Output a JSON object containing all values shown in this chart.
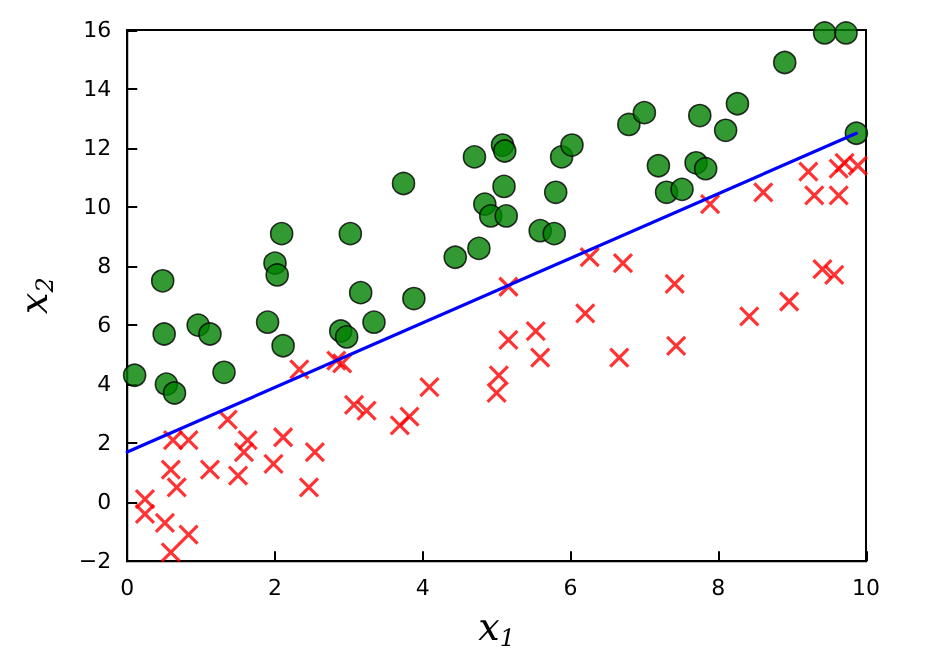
{
  "chart_data": {
    "type": "scatter",
    "xlabel": "x$_{1}$",
    "ylabel": "x$_{2}$",
    "xlim": [
      0,
      10
    ],
    "xticks": [
      0,
      2,
      4,
      6,
      8,
      10
    ],
    "ylim": [
      -2,
      16
    ],
    "yticks": [
      -2,
      0,
      2,
      4,
      6,
      8,
      10,
      12,
      14,
      16
    ],
    "grid": false,
    "series": [
      {
        "marker": "circle",
        "color": "#007f00",
        "x": [
          0.1,
          0.5,
          0.53,
          0.64,
          0.48,
          0.96,
          1.12,
          1.31,
          1.9,
          2.11,
          2.0,
          2.03,
          2.09,
          2.89,
          2.97,
          3.02,
          3.16,
          3.34,
          3.74,
          3.88,
          4.44,
          4.7,
          4.76,
          4.84,
          4.92,
          5.08,
          5.11,
          5.1,
          5.13,
          5.59,
          5.78,
          5.8,
          5.88,
          6.02,
          6.79,
          7.0,
          7.19,
          7.3,
          7.51,
          7.7,
          7.83,
          7.75,
          8.1,
          8.26,
          8.9,
          9.44,
          9.73,
          9.87
        ],
        "values": [
          4.3,
          5.7,
          4.0,
          3.7,
          7.5,
          6.0,
          5.7,
          4.4,
          6.1,
          5.3,
          8.1,
          7.7,
          9.1,
          5.8,
          5.6,
          9.1,
          7.1,
          6.1,
          10.8,
          6.9,
          8.3,
          11.7,
          8.6,
          10.1,
          9.7,
          12.1,
          11.9,
          10.7,
          9.7,
          9.2,
          9.1,
          10.5,
          11.7,
          12.1,
          12.8,
          13.2,
          11.4,
          10.5,
          10.6,
          11.5,
          11.3,
          13.1,
          12.6,
          13.5,
          14.9,
          15.9,
          15.9,
          12.5
        ]
      },
      {
        "marker": "cross",
        "color": "#ff0000",
        "x": [
          0.24,
          0.24,
          0.51,
          0.59,
          0.83,
          0.59,
          0.67,
          0.62,
          0.83,
          1.12,
          1.36,
          1.5,
          1.58,
          1.63,
          1.98,
          2.11,
          2.33,
          2.46,
          2.54,
          2.83,
          2.91,
          3.07,
          3.24,
          3.69,
          3.82,
          4.09,
          5.0,
          5.03,
          5.16,
          5.53,
          5.59,
          6.2,
          6.66,
          7.43,
          8.42,
          8.96,
          5.16,
          6.26,
          6.71,
          7.41,
          7.89,
          8.61,
          9.22,
          9.3,
          9.63,
          9.63,
          9.71,
          9.89,
          9.41,
          9.57
        ],
        "values": [
          0.1,
          -0.4,
          -0.7,
          -1.7,
          -1.1,
          1.1,
          0.5,
          2.1,
          2.1,
          1.1,
          2.8,
          0.9,
          1.7,
          2.1,
          1.3,
          2.2,
          4.5,
          0.5,
          1.7,
          4.8,
          4.7,
          3.3,
          3.1,
          2.6,
          2.9,
          3.9,
          3.7,
          4.3,
          5.5,
          5.8,
          4.9,
          6.4,
          4.9,
          5.3,
          6.3,
          6.8,
          7.3,
          8.3,
          8.1,
          7.4,
          10.1,
          10.5,
          11.2,
          10.4,
          10.4,
          11.3,
          11.5,
          11.4,
          7.9,
          7.7
        ]
      },
      {
        "type": "line",
        "marker": "none",
        "line_style": "solid",
        "color": "#0000ff",
        "x": [
          0,
          9.87
        ],
        "values": [
          1.7,
          12.5
        ]
      }
    ]
  }
}
